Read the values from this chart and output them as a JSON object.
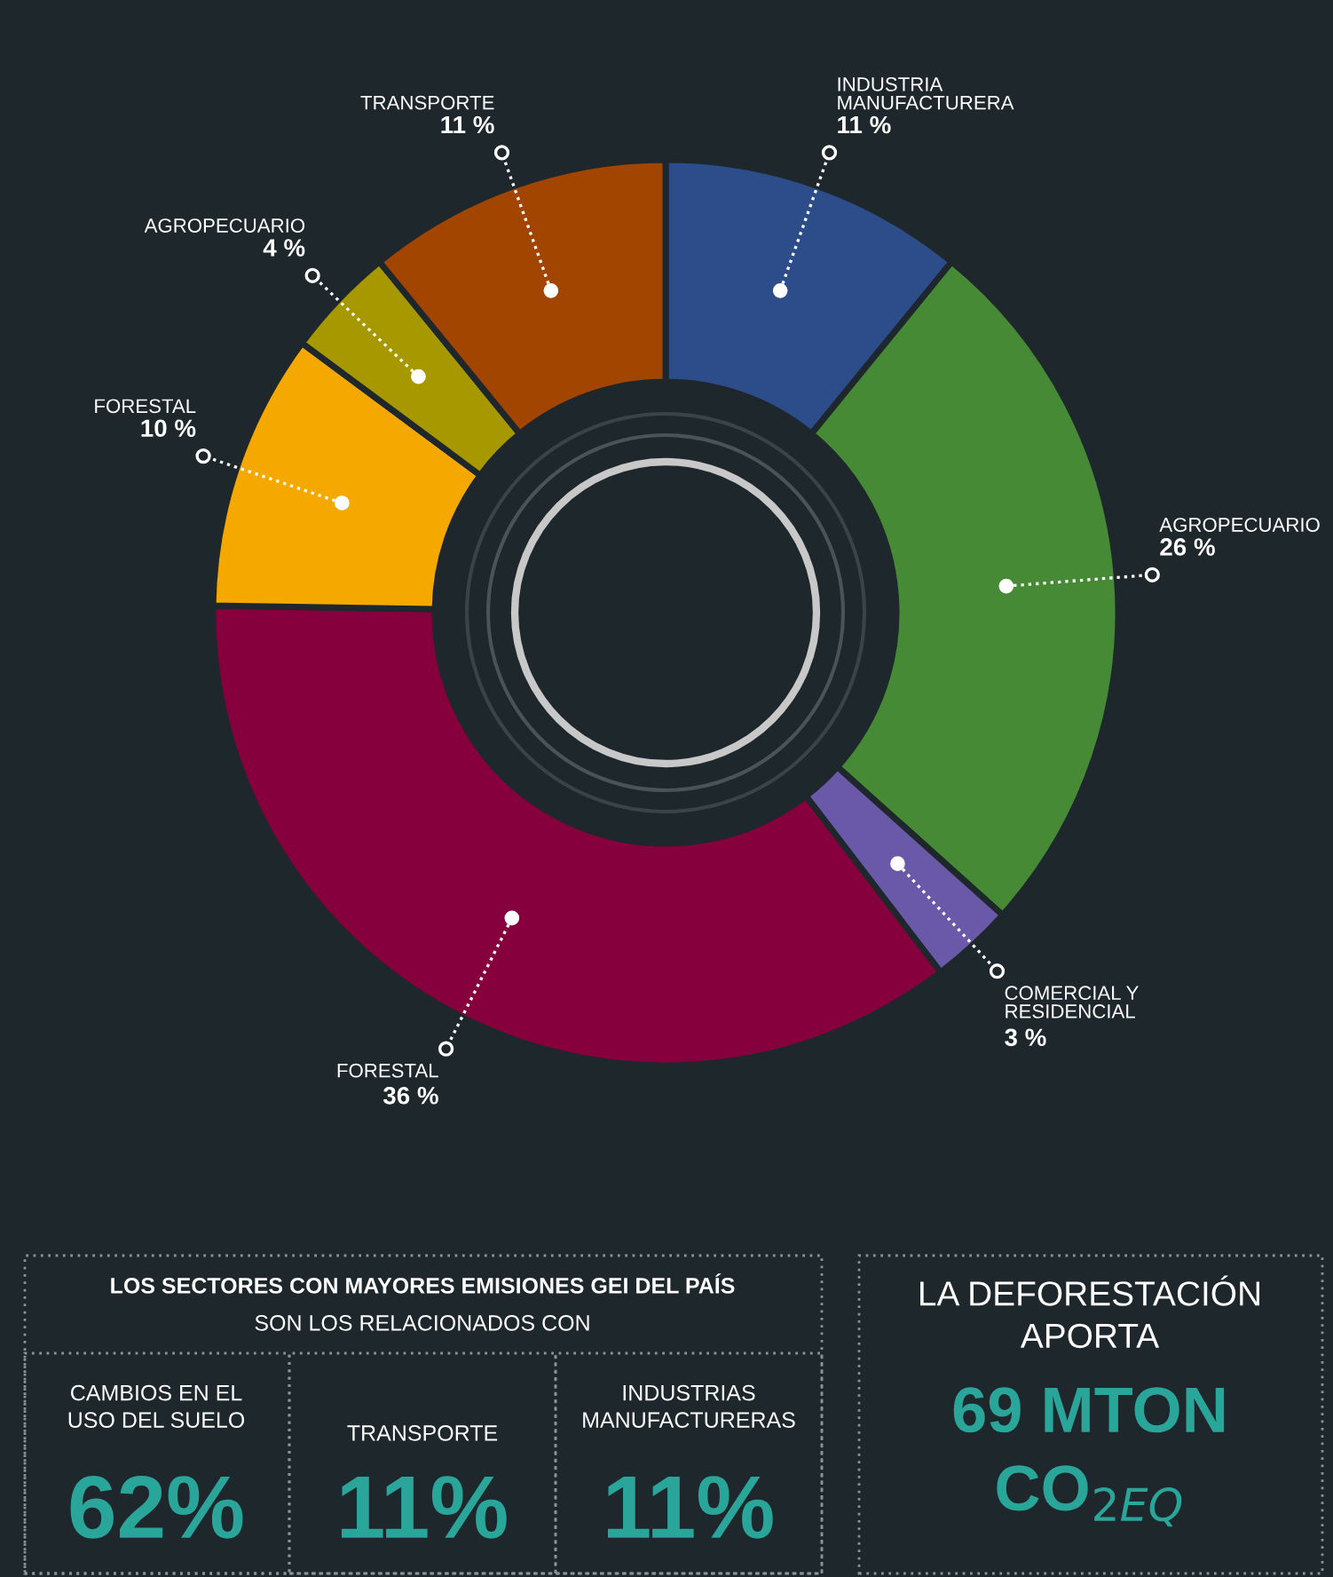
{
  "chart_data": {
    "type": "donut",
    "categories": [
      "INDUSTRIA\nMANUFACTURERA",
      "AGROPECUARIO",
      "COMERCIAL Y\nRESIDENCIAL",
      "FORESTAL",
      "FORESTAL",
      "AGROPECUARIO",
      "TRANSPORTE"
    ],
    "values": [
      11,
      26,
      3,
      36,
      10,
      4,
      11
    ],
    "value_labels": [
      "11 %",
      "26 %",
      "3 %",
      "36 %",
      "10 %",
      "4 %",
      "11 %"
    ],
    "colors": [
      "#2c4d8a",
      "#468a35",
      "#6a58a8",
      "#85003c",
      "#f5a800",
      "#a89800",
      "#a24500"
    ],
    "annotations": [
      "LOS SECTORES CON MAYORES EMISIONES GEI DEL PAÍS",
      "SON LOS RELACIONADOS CON",
      "CAMBIOS EN EL\nUSO DEL SUELO",
      "62%",
      "TRANSPORTE",
      "11%",
      "INDUSTRIAS\nMANUFACTURERAS",
      "11%",
      "LA DEFORESTACIÓN\nAPORTA",
      "69 MTON\nCO$_{2EQ}$"
    ]
  }
}
